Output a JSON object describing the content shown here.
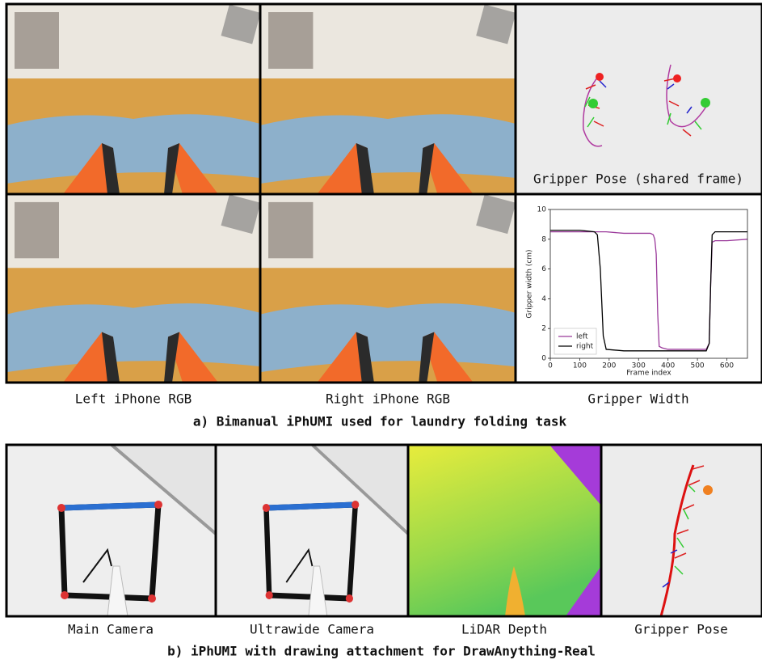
{
  "panel_a": {
    "labels": [
      "Left iPhone RGB",
      "Right iPhone RGB",
      "Gripper Width"
    ],
    "pose_label": "Gripper Pose (shared frame)",
    "caption": "a) Bimanual iPhUMI used for laundry folding task"
  },
  "panel_b": {
    "labels": [
      "Main Camera",
      "Ultrawide Camera",
      "LiDAR Depth",
      "Gripper Pose"
    ],
    "caption": "b) iPhUMI with drawing attachment for DrawAnything-Real"
  },
  "chart_data": {
    "type": "line",
    "x_label": "Frame index",
    "y_label": "Gripper width (cm)",
    "x": [
      0,
      100,
      150,
      160,
      170,
      180,
      190,
      250,
      300,
      340,
      350,
      355,
      360,
      365,
      370,
      380,
      400,
      500,
      530,
      540,
      545,
      550,
      560,
      600,
      670
    ],
    "series": [
      {
        "name": "left",
        "color": "#9b3a9b",
        "values": [
          8.5,
          8.5,
          8.5,
          8.5,
          8.5,
          8.5,
          8.5,
          8.4,
          8.4,
          8.4,
          8.3,
          8.0,
          7.0,
          3.0,
          0.8,
          0.7,
          0.6,
          0.6,
          0.6,
          1.0,
          5.0,
          7.8,
          7.9,
          7.9,
          8.0
        ]
      },
      {
        "name": "right",
        "color": "#000000",
        "values": [
          8.6,
          8.6,
          8.5,
          8.3,
          6.0,
          1.5,
          0.6,
          0.5,
          0.5,
          0.5,
          0.5,
          0.5,
          0.5,
          0.5,
          0.5,
          0.5,
          0.5,
          0.5,
          0.5,
          1.0,
          5.0,
          8.3,
          8.5,
          8.5,
          8.5
        ]
      }
    ],
    "xlim": [
      0,
      670
    ],
    "xticks": [
      0,
      100,
      200,
      300,
      400,
      500,
      600
    ],
    "ylim": [
      0,
      10
    ],
    "yticks": [
      0,
      2,
      4,
      6,
      8,
      10
    ],
    "legend": "lower left",
    "grid": false
  }
}
